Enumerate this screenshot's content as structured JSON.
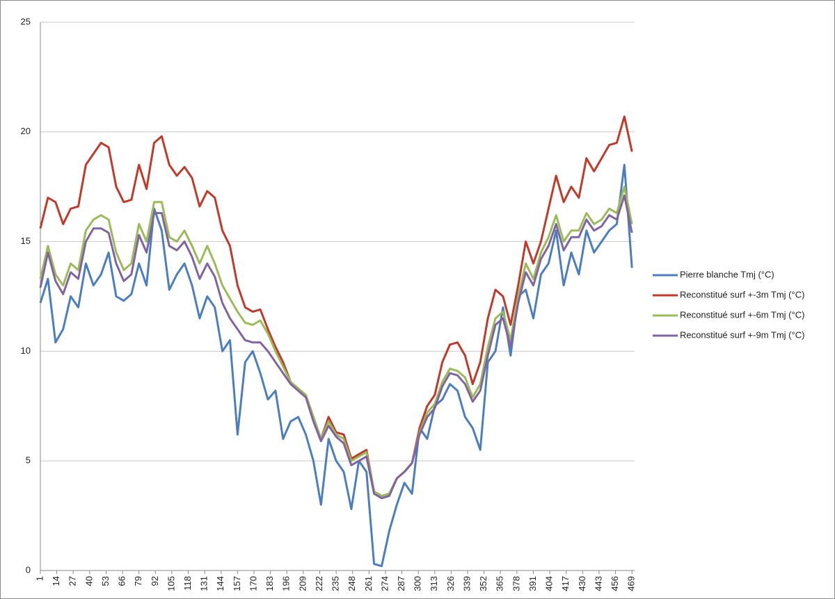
{
  "chart_data": {
    "type": "line",
    "x": [
      1,
      7,
      13,
      19,
      25,
      31,
      37,
      43,
      49,
      55,
      61,
      67,
      73,
      79,
      85,
      91,
      97,
      103,
      109,
      115,
      121,
      127,
      133,
      139,
      145,
      151,
      157,
      163,
      169,
      175,
      181,
      187,
      193,
      199,
      205,
      211,
      217,
      223,
      229,
      235,
      241,
      247,
      253,
      259,
      265,
      271,
      277,
      283,
      289,
      295,
      301,
      307,
      313,
      319,
      325,
      331,
      337,
      343,
      349,
      355,
      361,
      367,
      373,
      379,
      385,
      391,
      397,
      403,
      409,
      415,
      421,
      427,
      433,
      439,
      445,
      451,
      457,
      463,
      469
    ],
    "series": [
      {
        "name": "Pierre blanche Tmj (°C)",
        "color": "#4a7ebf",
        "values": [
          12.2,
          13.3,
          10.4,
          11.0,
          12.5,
          12.0,
          14.0,
          13.0,
          13.5,
          14.5,
          12.5,
          12.3,
          12.6,
          14.0,
          13.0,
          16.5,
          15.5,
          12.8,
          13.5,
          14.0,
          13.0,
          11.5,
          12.5,
          12.0,
          10.0,
          10.5,
          6.2,
          9.5,
          10.0,
          9.0,
          7.8,
          8.2,
          6.0,
          6.8,
          7.0,
          6.2,
          5.0,
          3.0,
          6.0,
          5.0,
          4.5,
          2.8,
          5.0,
          4.5,
          0.3,
          0.2,
          1.8,
          3.0,
          4.0,
          3.5,
          6.5,
          6.0,
          7.5,
          7.8,
          8.5,
          8.2,
          7.0,
          6.5,
          5.5,
          9.5,
          10.0,
          12.0,
          9.8,
          12.5,
          12.8,
          11.5,
          13.5,
          14.0,
          15.5,
          13.0,
          14.5,
          13.5,
          15.5,
          14.5,
          15.0,
          15.5,
          15.8,
          18.5,
          13.8
        ]
      },
      {
        "name": "Reconstitué surf +-3m Tmj (°C)",
        "color": "#c0392b",
        "values": [
          15.6,
          17.0,
          16.8,
          15.8,
          16.5,
          16.6,
          18.5,
          19.0,
          19.5,
          19.3,
          17.5,
          16.8,
          16.9,
          18.5,
          17.4,
          19.5,
          19.8,
          18.5,
          18.0,
          18.4,
          17.9,
          16.6,
          17.3,
          17.0,
          15.5,
          14.8,
          13.0,
          12.0,
          11.8,
          11.9,
          11.0,
          10.2,
          9.5,
          8.6,
          8.3,
          8.0,
          7.0,
          6.0,
          7.0,
          6.3,
          6.2,
          5.1,
          5.3,
          5.5,
          3.6,
          3.4,
          3.5,
          4.2,
          4.5,
          4.9,
          6.5,
          7.5,
          8.0,
          9.5,
          10.3,
          10.4,
          9.8,
          8.5,
          9.5,
          11.5,
          12.8,
          12.5,
          11.2,
          13.0,
          15.0,
          14.0,
          15.0,
          16.5,
          18.0,
          16.8,
          17.5,
          17.0,
          18.8,
          18.2,
          18.8,
          19.4,
          19.5,
          20.7,
          19.1
        ]
      },
      {
        "name": "Reconstitué surf +-6m Tmj (°C)",
        "color": "#9bbb59",
        "values": [
          13.3,
          14.8,
          13.5,
          13.0,
          14.0,
          13.7,
          15.5,
          16.0,
          16.2,
          16.0,
          14.5,
          13.7,
          14.0,
          15.8,
          15.0,
          16.8,
          16.8,
          15.2,
          15.0,
          15.5,
          14.8,
          14.0,
          14.8,
          14.0,
          13.0,
          12.4,
          11.8,
          11.3,
          11.2,
          11.4,
          10.8,
          10.0,
          9.3,
          8.6,
          8.3,
          8.0,
          7.0,
          6.0,
          6.8,
          6.2,
          6.0,
          5.0,
          5.2,
          5.4,
          3.6,
          3.4,
          3.5,
          4.2,
          4.5,
          4.9,
          6.3,
          7.2,
          7.6,
          8.6,
          9.2,
          9.1,
          8.8,
          7.9,
          8.5,
          10.2,
          11.5,
          11.8,
          10.5,
          12.5,
          14.0,
          13.3,
          14.5,
          15.2,
          16.2,
          15.0,
          15.5,
          15.5,
          16.3,
          15.8,
          16.0,
          16.5,
          16.3,
          17.5,
          15.8
        ]
      },
      {
        "name": "Reconstitué surf +-9m Tmj (°C)",
        "color": "#8064a2",
        "values": [
          12.9,
          14.5,
          13.2,
          12.6,
          13.6,
          13.3,
          15.0,
          15.6,
          15.6,
          15.4,
          14.0,
          13.2,
          13.5,
          15.3,
          14.5,
          16.3,
          16.3,
          14.8,
          14.6,
          15.0,
          14.3,
          13.3,
          14.0,
          13.4,
          12.2,
          11.5,
          11.0,
          10.5,
          10.4,
          10.4,
          10.0,
          9.5,
          9.0,
          8.5,
          8.2,
          7.9,
          6.8,
          5.9,
          6.6,
          6.1,
          5.8,
          4.8,
          5.0,
          5.2,
          3.5,
          3.3,
          3.4,
          4.2,
          4.5,
          4.9,
          6.2,
          7.0,
          7.4,
          8.4,
          9.0,
          8.9,
          8.5,
          7.7,
          8.2,
          9.8,
          11.2,
          11.5,
          10.2,
          12.2,
          13.6,
          13.0,
          14.2,
          14.8,
          15.8,
          14.6,
          15.2,
          15.2,
          16.0,
          15.5,
          15.7,
          16.2,
          16.0,
          17.1,
          15.4
        ]
      }
    ],
    "xlim": [
      1,
      470
    ],
    "xticks": [
      1,
      14,
      27,
      40,
      53,
      66,
      79,
      92,
      105,
      118,
      131,
      144,
      157,
      170,
      183,
      196,
      209,
      222,
      235,
      248,
      261,
      274,
      287,
      300,
      313,
      326,
      339,
      352,
      365,
      378,
      391,
      404,
      417,
      430,
      443,
      456,
      469
    ],
    "ylim": [
      0,
      25
    ],
    "yticks": [
      0,
      5,
      10,
      15,
      20,
      25
    ],
    "grid": true,
    "legend": "right"
  }
}
